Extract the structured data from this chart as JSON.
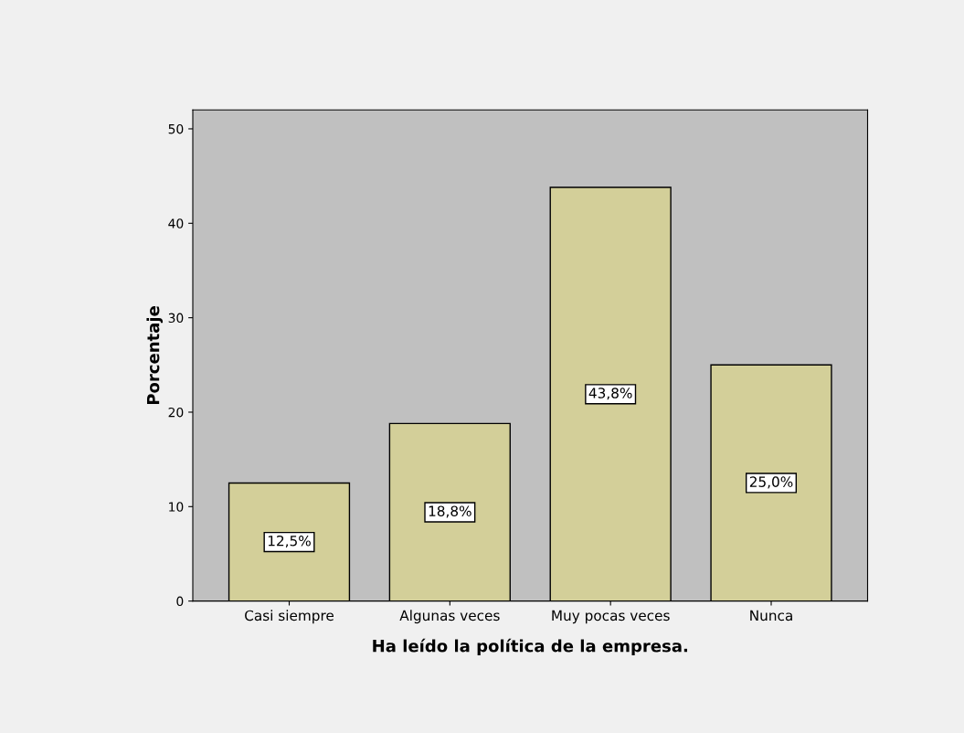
{
  "chart_data": {
    "type": "bar",
    "xlabel": "Ha leído la política de la empresa.",
    "ylabel": "Porcentaje",
    "categories": [
      "Casi siempre",
      "Algunas veces",
      "Muy pocas veces",
      "Nunca"
    ],
    "values": [
      12.5,
      18.8,
      43.8,
      25.0
    ],
    "value_labels": [
      "12,5%",
      "18,8%",
      "43,8%",
      "25,0%"
    ],
    "color": "#d3cf99",
    "ylim": [
      0,
      52
    ],
    "yticks": [
      0,
      10,
      20,
      30,
      40,
      50
    ],
    "grid": false
  }
}
